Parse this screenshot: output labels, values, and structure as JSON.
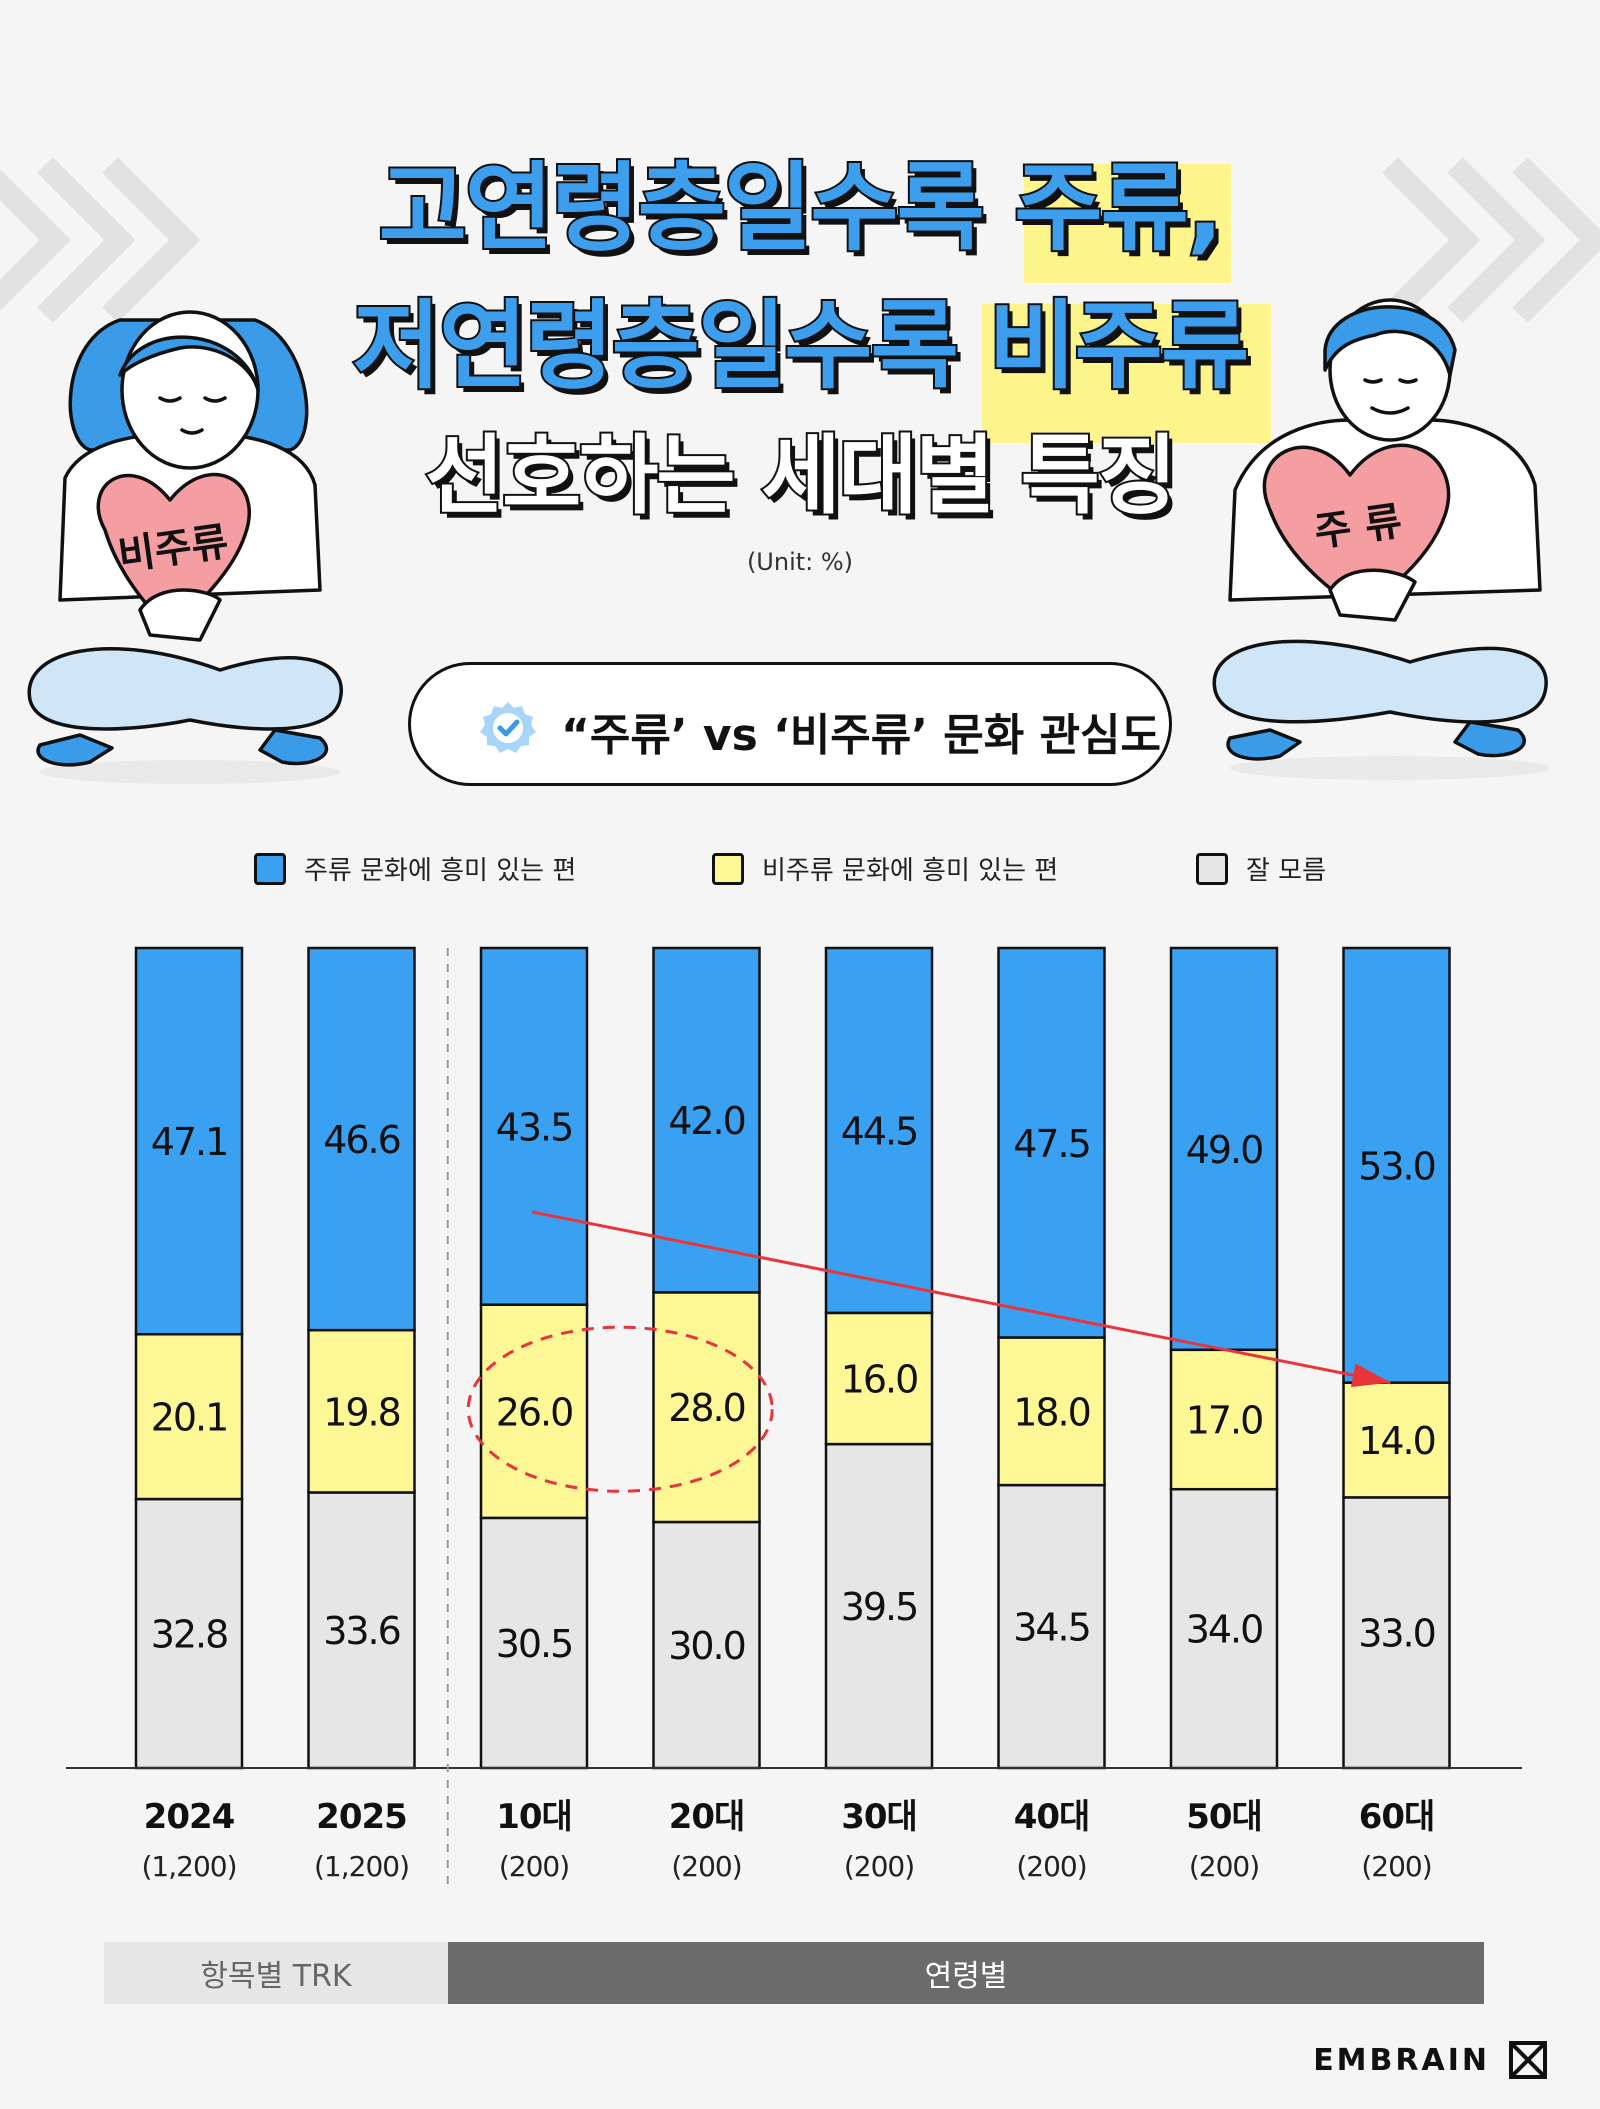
{
  "title": {
    "line1_a": "고연령층일수록",
    "line1_b": "주류,",
    "line2_a": "저연령층일수록",
    "line2_b": "비주류",
    "line3": "선호하는 세대별 특징"
  },
  "unit": "(Unit: %)",
  "subtitle_pill": "“주류’ vs ‘비주류’ 문화 관심도",
  "illustration": {
    "left_heart_label": "비주류",
    "right_heart_label": "주 류"
  },
  "footer": {
    "group_trk": "항목별 TRK",
    "group_age": "연령별",
    "logo": "EMBRAIN"
  },
  "colors": {
    "mainstream": "#3aa1f2",
    "non_mainstream": "#fdf796",
    "unknown": "#e6e6e6",
    "accent_red": "#e8353b",
    "outline": "#111111"
  },
  "icons": [
    "verified-badge-icon",
    "embrain-logo-icon",
    "trend-arrow",
    "highlight-ellipse"
  ],
  "chart_data": {
    "type": "bar",
    "stacked": true,
    "stacked_percent": true,
    "categories": [
      "2024",
      "2025",
      "10대",
      "20대",
      "30대",
      "40대",
      "50대",
      "60대"
    ],
    "sample_sizes": [
      "(1,200)",
      "(1,200)",
      "(200)",
      "(200)",
      "(200)",
      "(200)",
      "(200)",
      "(200)"
    ],
    "series": [
      {
        "name": "잘 모름",
        "color": "#e6e6e6",
        "values": [
          32.8,
          33.6,
          30.5,
          30.0,
          39.5,
          34.5,
          34.0,
          33.0
        ],
        "labels": [
          "32.8",
          "33.6",
          "30.5",
          "30.0",
          "39.5",
          "34.5",
          "34.0",
          "33.0"
        ]
      },
      {
        "name": "비주류 문화에 흥미 있는 편",
        "color": "#fdf796",
        "values": [
          20.1,
          19.8,
          26.0,
          28.0,
          16.0,
          18.0,
          17.0,
          14.0
        ],
        "labels": [
          "20.1",
          "19.8",
          "26.0",
          "28.0",
          "16.0",
          "18.0",
          "17.0",
          "14.0"
        ]
      },
      {
        "name": "주류 문화에 흥미 있는 편",
        "color": "#3aa1f2",
        "values": [
          47.1,
          46.6,
          43.5,
          42.0,
          44.5,
          47.5,
          49.0,
          53.0
        ],
        "labels": [
          "47.1",
          "46.6",
          "43.5",
          "42.0",
          "44.5",
          "47.5",
          "49.0",
          "53.0"
        ]
      }
    ],
    "legend_order": [
      "주류 문화에 흥미 있는 편",
      "비주류 문화에 흥미 있는 편",
      "잘 모름"
    ],
    "ylim": [
      0,
      100
    ],
    "legend_position": "top",
    "grid": false,
    "groups": [
      {
        "label": "항목별 TRK",
        "categories": [
          "2024",
          "2025"
        ]
      },
      {
        "label": "연령별",
        "categories": [
          "10대",
          "20대",
          "30대",
          "40대",
          "50대",
          "60대"
        ]
      }
    ],
    "annotations": [
      {
        "type": "arrow",
        "from": "10대",
        "to": "60대",
        "series": "주류 문화에 흥미 있는 편"
      },
      {
        "type": "ellipse",
        "categories": [
          "10대",
          "20대"
        ],
        "series": "비주류 문화에 흥미 있는 편"
      }
    ]
  }
}
